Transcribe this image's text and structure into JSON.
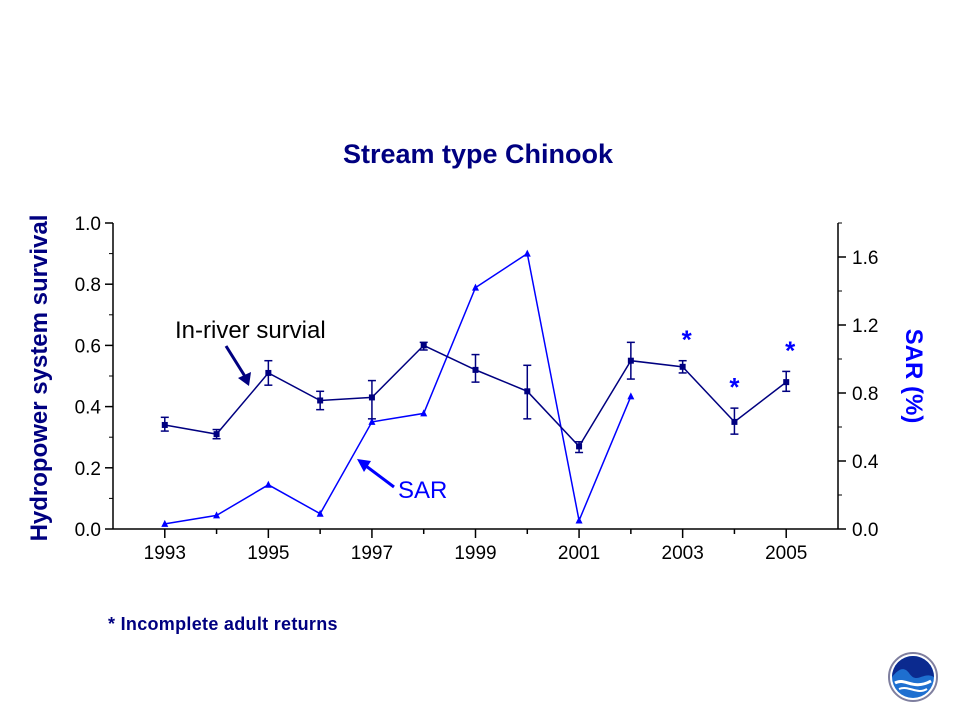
{
  "chart_data": {
    "type": "line",
    "title": "Stream type Chinook",
    "x": [
      1993,
      1994,
      1995,
      1996,
      1997,
      1998,
      1999,
      2000,
      2001,
      2002,
      2003,
      2004,
      2005
    ],
    "x_ticks": [
      "1993",
      "1995",
      "1997",
      "1999",
      "2001",
      "2003",
      "2005"
    ],
    "xlim": [
      1992,
      2006
    ],
    "ylabel": "Hydropower system survival",
    "ylim": [
      0,
      1.0
    ],
    "yticks": [
      "0.0",
      "0.2",
      "0.4",
      "0.6",
      "0.8",
      "1.0"
    ],
    "y2label": "SAR (%)",
    "y2lim": [
      0,
      1.8
    ],
    "y2ticks": [
      "0.0",
      "0.4",
      "0.8",
      "1.2",
      "1.6"
    ],
    "series": [
      {
        "name": "In-river survial",
        "axis": "left",
        "color": "#000080",
        "marker": "square",
        "x": [
          1993,
          1994,
          1995,
          1996,
          1997,
          1998,
          1999,
          2000,
          2001,
          2002,
          2003,
          2004,
          2005
        ],
        "values": [
          0.34,
          0.31,
          0.51,
          0.42,
          0.43,
          0.6,
          0.52,
          0.45,
          0.27,
          0.55,
          0.53,
          0.35,
          0.48
        ],
        "err_low": [
          0.32,
          0.295,
          0.47,
          0.39,
          0.36,
          0.585,
          0.48,
          0.36,
          0.25,
          0.49,
          0.51,
          0.31,
          0.45
        ],
        "err_high": [
          0.365,
          0.325,
          0.55,
          0.45,
          0.485,
          0.61,
          0.57,
          0.535,
          0.285,
          0.61,
          0.55,
          0.395,
          0.515
        ]
      },
      {
        "name": "SAR",
        "axis": "right",
        "color": "#0000ff",
        "marker": "triangle",
        "x": [
          1993,
          1994,
          1995,
          1996,
          1997,
          1998,
          1999,
          2000,
          2001,
          2002
        ],
        "values": [
          0.03,
          0.08,
          0.26,
          0.09,
          0.63,
          0.68,
          1.42,
          1.62,
          0.05,
          0.78
        ]
      }
    ],
    "incomplete_years": [
      2003,
      2004,
      2005
    ],
    "annotations": {
      "inriver_label": "In-river survial",
      "sar_label": "SAR",
      "star": "*",
      "footnote": "* Incomplete adult returns"
    }
  },
  "colors": {
    "dark_series": "#000080",
    "sar_series": "#0000ff",
    "axis": "#000000"
  },
  "logo": {
    "icon": "noaa-logo-icon",
    "text": "NOAA"
  }
}
